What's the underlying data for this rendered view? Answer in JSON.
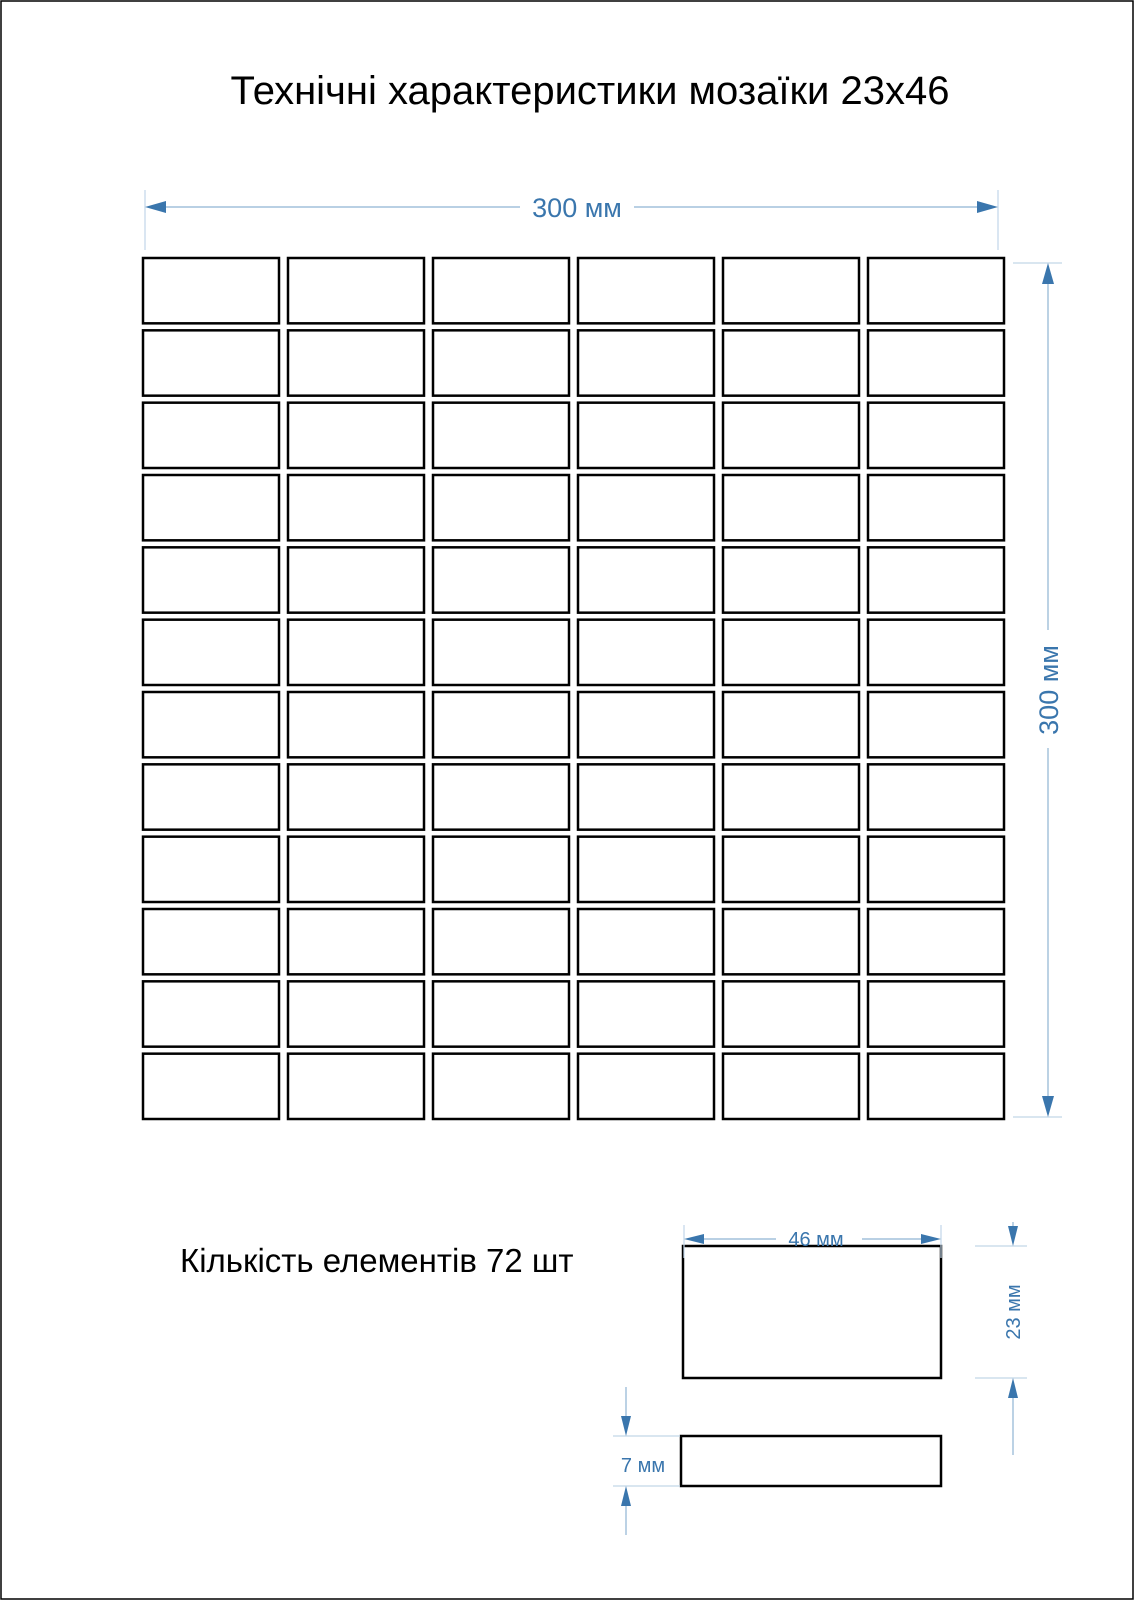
{
  "title": "Технічні характеристики мозаїки 23x46",
  "sheet": {
    "width_label": "300 мм",
    "height_label": "300 мм",
    "columns": 6,
    "rows": 12
  },
  "count_label": "Кількість елементів 72 шт",
  "element": {
    "length_label": "46 мм",
    "width_label": "23 мм",
    "thickness_label": "7 мм"
  },
  "colors": {
    "dimension": "#3a76ad",
    "outline": "#000000"
  }
}
